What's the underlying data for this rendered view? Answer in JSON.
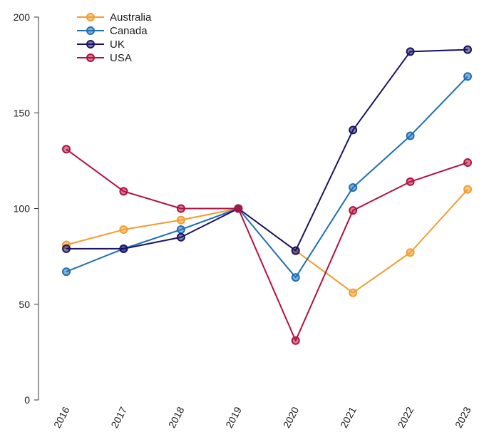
{
  "chart_data": {
    "type": "line",
    "title": "",
    "xlabel": "",
    "ylabel": "",
    "categories": [
      "2016",
      "2017",
      "2018",
      "2019",
      "2020",
      "2021",
      "2022",
      "2023"
    ],
    "ylim": [
      0,
      200
    ],
    "yticks": [
      "0",
      "50",
      "100",
      "150",
      "200"
    ],
    "grid": false,
    "legend": "top-left",
    "series": [
      {
        "name": "Australia",
        "color": "#f39c2e",
        "values": [
          81,
          89,
          94,
          100,
          78,
          56,
          77,
          110
        ]
      },
      {
        "name": "Canada",
        "color": "#1f6fb5",
        "values": [
          67,
          79,
          89,
          100,
          64,
          111,
          138,
          169
        ]
      },
      {
        "name": "UK",
        "color": "#1a1464",
        "values": [
          79,
          79,
          85,
          100,
          78,
          141,
          182,
          183
        ]
      },
      {
        "name": "USA",
        "color": "#b0123f",
        "values": [
          131,
          109,
          100,
          100,
          31,
          99,
          114,
          124
        ]
      }
    ]
  }
}
